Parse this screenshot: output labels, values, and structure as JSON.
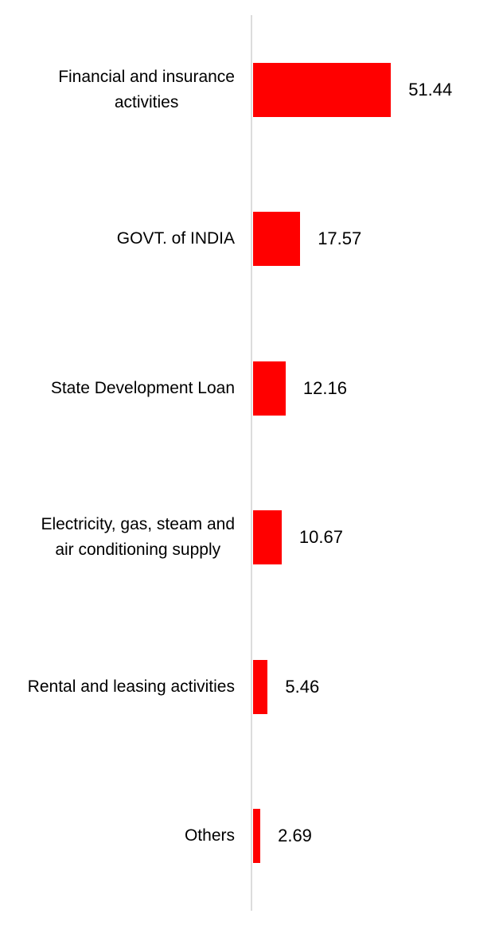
{
  "chart_data": {
    "type": "bar",
    "orientation": "horizontal",
    "title": "",
    "categories": [
      "Financial and insurance activities",
      "GOVT. of INDIA",
      "State Development Loan",
      "Electricity, gas, steam and air conditioning supply",
      "Rental and leasing activities",
      "Others"
    ],
    "category_lines": [
      [
        "Financial and insurance",
        "activities"
      ],
      [
        "GOVT. of INDIA"
      ],
      [
        "State Development Loan"
      ],
      [
        "Electricity, gas, steam and",
        "air conditioning supply"
      ],
      [
        "Rental and leasing activities"
      ],
      [
        "Others"
      ]
    ],
    "values": [
      51.44,
      17.57,
      12.16,
      10.67,
      5.46,
      2.69
    ],
    "value_labels": [
      "51.44",
      "17.57",
      "12.16",
      "10.67",
      "5.46",
      "2.69"
    ],
    "xlabel": "",
    "ylabel": "",
    "xlim": [
      0,
      60
    ],
    "grid": false,
    "legend": "none",
    "data_labels": "outside-end",
    "bar_color": "#ff0000",
    "axis_line_color": "#dcdcdc",
    "label_color": "#000000",
    "value_color": "#000000"
  }
}
